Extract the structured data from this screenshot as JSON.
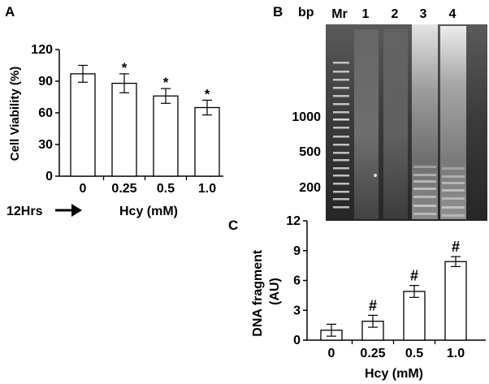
{
  "panels": {
    "A": {
      "letter": "A",
      "treatment_label": "12Hrs",
      "arrow_icon": "right-arrow-icon"
    },
    "B": {
      "letter": "B",
      "size_unit": "bp",
      "lane_labels": [
        "Mr",
        "1",
        "2",
        "3",
        "4"
      ],
      "size_markers": [
        "1000",
        "500",
        "200"
      ]
    },
    "C": {
      "letter": "C"
    }
  },
  "chart_data": [
    {
      "panel": "A",
      "type": "bar",
      "categories": [
        "0",
        "0.25",
        "0.5",
        "1.0"
      ],
      "values": [
        97,
        88,
        76,
        65
      ],
      "errors": [
        8,
        9,
        7,
        7
      ],
      "annotations": [
        "",
        "*",
        "*",
        "*"
      ],
      "title": "",
      "xlabel": "Hcy (mM)",
      "ylabel": "Cell Viability (%)",
      "ylim": [
        0,
        120
      ],
      "yticks": [
        "0",
        "30",
        "60",
        "90",
        "120"
      ],
      "grid": false
    },
    {
      "panel": "C",
      "type": "bar",
      "categories": [
        "0",
        "0.25",
        "0.5",
        "1.0"
      ],
      "values": [
        1.0,
        1.9,
        4.9,
        7.9
      ],
      "errors": [
        0.6,
        0.6,
        0.6,
        0.5
      ],
      "annotations": [
        "",
        "#",
        "#",
        "#"
      ],
      "title": "",
      "xlabel": "Hcy (mM)",
      "ylabel": "DNA fragment (AU)",
      "ylim": [
        0,
        12
      ],
      "yticks": [
        "0",
        "3",
        "6",
        "9",
        "12"
      ],
      "grid": false
    }
  ]
}
